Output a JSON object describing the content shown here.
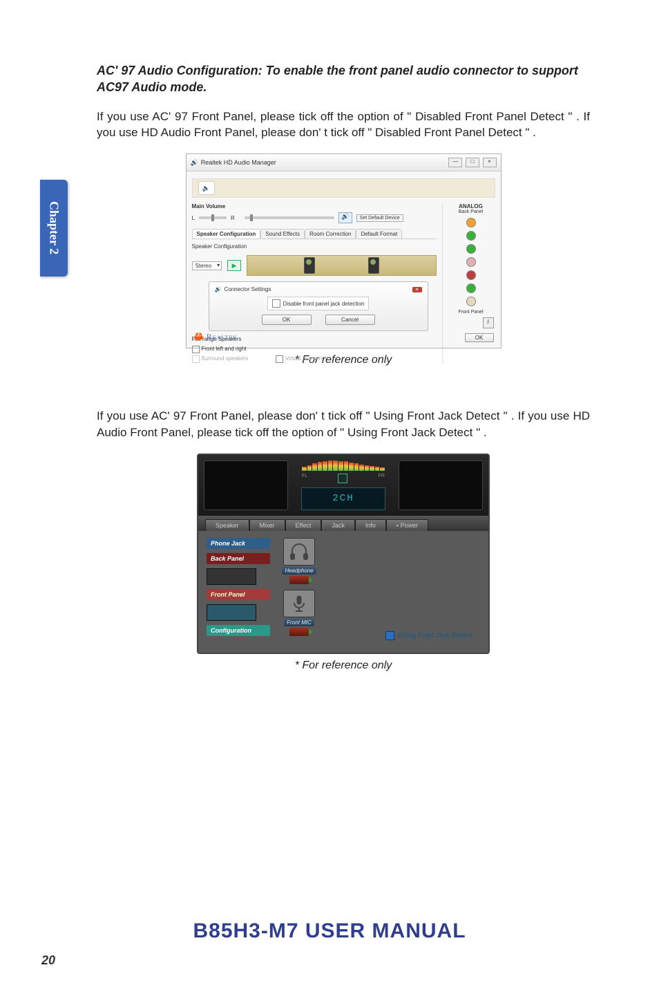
{
  "chapter_tab": "Chapter 2",
  "heading": "AC' 97 Audio Configuration: To enable the front panel audio connector to support AC97 Audio mode.",
  "para1": "If you use AC' 97 Front Panel, please tick off the option of \" Disabled Front Panel Detect \" . If you use HD Audio Front Panel, please don' t tick off \" Disabled Front Panel Detect \" .",
  "caption1": "* For reference only",
  "para2": "If you use AC' 97 Front Panel, please don' t tick off \" Using Front Jack Detect \" . If you use HD Audio Front Panel, please tick off the option of \" Using Front Jack Detect \" .",
  "caption2": "* For reference only",
  "footer_title": "B85H3-M7 USER MANUAL",
  "page_number": "20",
  "realtek": {
    "title": "Realtek HD Audio Manager",
    "win_min": "—",
    "win_max": "□",
    "win_close": "×",
    "main_volume": "Main Volume",
    "L": "L",
    "R": "R",
    "set_default": "Set Default Device",
    "analog": "ANALOG",
    "back_panel": "Back Panel",
    "front_panel": "Front Panel",
    "tabs": [
      "Speaker Configuration",
      "Sound Effects",
      "Room Correction",
      "Default Format"
    ],
    "speaker_configuration_label": "Speaker Configuration",
    "select_value": "Stereo",
    "play": "▶",
    "dialog_title": "Connector Settings",
    "dialog_check": "Disable front panel jack detection",
    "ok": "OK",
    "cancel": "Cancel",
    "full_range": "Full-range Speakers",
    "front_lr": "Front left and right",
    "surround_sp": "Surround speakers",
    "virtual_surround": "Virtual Surround",
    "logo": "Realtek",
    "info": "i",
    "ok2": "OK",
    "right_dots": [
      "#f0a030",
      "#3ab03a",
      "#3ab03a",
      "#e0b0b0",
      "#b84040",
      "#3ab03a",
      "#e8d8c0"
    ]
  },
  "via": {
    "lcd": "2CH",
    "fl": "FL",
    "fr": "FR",
    "tabs": [
      "Speaker",
      "Mixer",
      "Effect",
      "Jack",
      "Info",
      "▪ Power"
    ],
    "phone_jack": "Phone Jack",
    "back_panel": "Back Panel",
    "front_panel": "Front Panel",
    "configuration": "Configuration",
    "headphone": "Headphone",
    "front_mic": "Front MIC",
    "check_label": "Using Front Jack Detect",
    "eq_heights": [
      40,
      55,
      70,
      85,
      95,
      100,
      100,
      95,
      90,
      80,
      70,
      60,
      50,
      45,
      40,
      35
    ]
  },
  "colors": {
    "tab_bg": "#3a66b8",
    "footer": "#2f3e8f",
    "phone_jack": "#2e5f8a",
    "back_panel_tag": "#7a1f1f",
    "front_panel_tag": "#a33a3a",
    "config_tag": "#2a9a88"
  }
}
